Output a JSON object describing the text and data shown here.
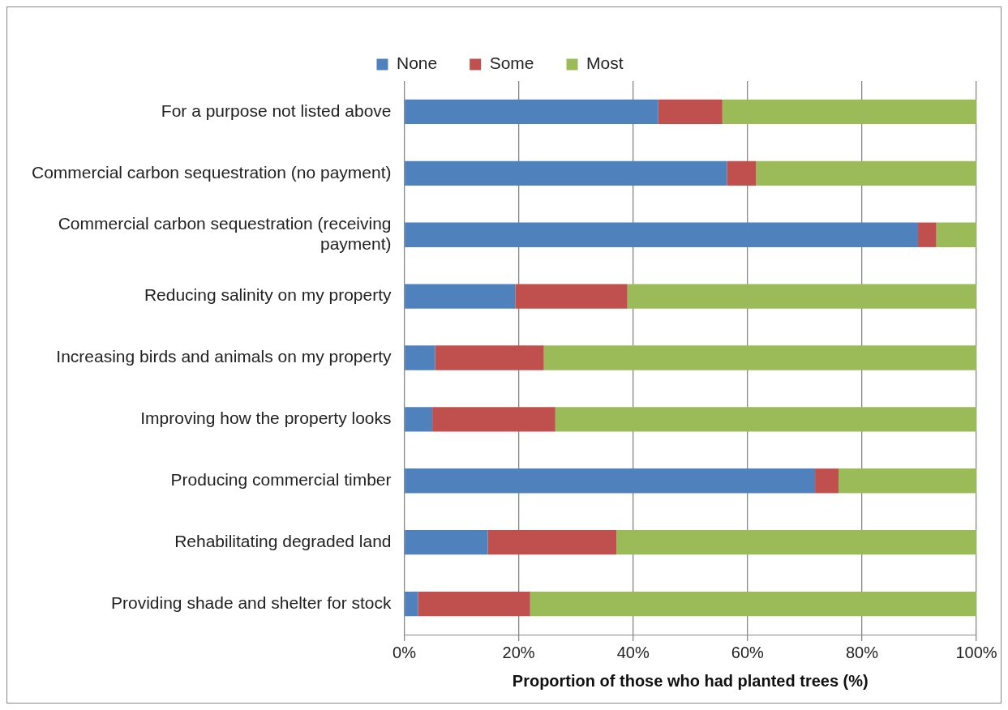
{
  "chart_data": {
    "type": "bar",
    "orientation": "horizontal",
    "stacked": true,
    "xlabel": "Proportion of those who had planted trees (%)",
    "categories": [
      "For a purpose not listed above",
      "Commercial carbon sequestration (no payment)",
      "Commercial carbon sequestration (receiving payment)",
      "Reducing salinity on my property",
      "Increasing birds and animals on my property",
      "Improving how the property looks",
      "Producing commercial timber",
      "Rehabilitating degraded land",
      "Providing shade and shelter for stock"
    ],
    "series": [
      {
        "name": "None",
        "color": "#4f81bd",
        "values": [
          44.4,
          56.4,
          89.8,
          19.4,
          5.4,
          4.9,
          71.8,
          14.6,
          2.4
        ]
      },
      {
        "name": "Some",
        "color": "#c0504d",
        "values": [
          11.2,
          5.1,
          3.2,
          19.6,
          19.0,
          21.5,
          4.1,
          22.5,
          19.6
        ]
      },
      {
        "name": "Most",
        "color": "#9bbb59",
        "values": [
          44.4,
          38.5,
          7.0,
          61.0,
          75.6,
          73.6,
          24.1,
          62.9,
          78.0
        ]
      }
    ],
    "xlim": [
      0,
      100
    ],
    "xticks": [
      {
        "value": 0,
        "label": "0%"
      },
      {
        "value": 20,
        "label": "20%"
      },
      {
        "value": 40,
        "label": "40%"
      },
      {
        "value": 60,
        "label": "60%"
      },
      {
        "value": 80,
        "label": "80%"
      },
      {
        "value": 100,
        "label": "100%"
      }
    ],
    "grid": "x",
    "legend": "top"
  }
}
